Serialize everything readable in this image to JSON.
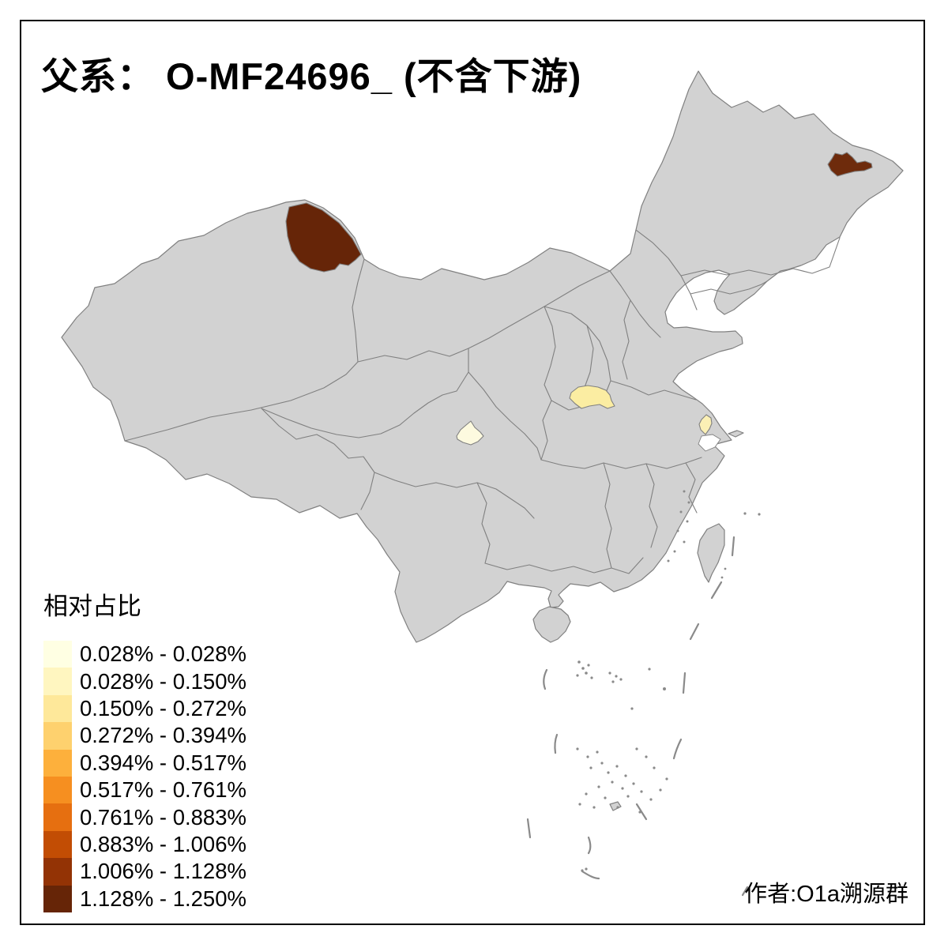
{
  "title": "父系： O-MF24696_ (不含下游)",
  "author_credit": "作者:O1a溯源群",
  "legend": {
    "title": "相对占比",
    "classes": [
      {
        "label": "0.028% - 0.028%",
        "color": "#FFFFE3"
      },
      {
        "label": "0.028% - 0.150%",
        "color": "#FFF6C0"
      },
      {
        "label": "0.150% - 0.272%",
        "color": "#FEE89A"
      },
      {
        "label": "0.272% - 0.394%",
        "color": "#FED16E"
      },
      {
        "label": "0.394% - 0.517%",
        "color": "#FDB03C"
      },
      {
        "label": "0.517% - 0.761%",
        "color": "#F68F20"
      },
      {
        "label": "0.761% - 0.883%",
        "color": "#E66F10"
      },
      {
        "label": "0.883% - 1.006%",
        "color": "#C24D04"
      },
      {
        "label": "1.006% - 1.128%",
        "color": "#933305"
      },
      {
        "label": "1.128% - 1.250%",
        "color": "#662507"
      }
    ]
  },
  "map": {
    "background_color": "#FFFFFF",
    "land_color": "#D2D2D2",
    "border_color": "#808080",
    "frame_color": "#000000",
    "speck_color": "#8A8A8A",
    "lake_color": "#FFFFFF",
    "regions": [
      {
        "id": "northwest-region",
        "color": "#662508",
        "legend_class": "1.128% - 1.250%"
      },
      {
        "id": "northeast-region",
        "color": "#6E2B0C",
        "legend_class": "1.128% - 1.250%"
      },
      {
        "id": "center-region",
        "color": "#FBEDA2",
        "legend_class": "0.150% - 0.272%"
      },
      {
        "id": "center-west-region",
        "color": "#FDFADF",
        "legend_class": "0.028% - 0.028%"
      },
      {
        "id": "east-region",
        "color": "#FBF0B5",
        "legend_class": "0.028% - 0.150%"
      }
    ]
  },
  "chart_data": {
    "type": "heatmap",
    "subtype": "choropleth map of China prefectures",
    "title": "父系： O-MF24696_ (不含下游)",
    "legend_title": "相对占比",
    "bins": [
      "0.028% - 0.028%",
      "0.028% - 0.150%",
      "0.150% - 0.272%",
      "0.272% - 0.394%",
      "0.394% - 0.517%",
      "0.517% - 0.761%",
      "0.761% - 0.883%",
      "0.883% - 1.006%",
      "1.006% - 1.128%",
      "1.128% - 1.250%"
    ],
    "bin_colors": [
      "#FFFFE3",
      "#FFF6C0",
      "#FEE89A",
      "#FED16E",
      "#FDB03C",
      "#F68F20",
      "#E66F10",
      "#C24D04",
      "#933305",
      "#662507"
    ],
    "value_range_percent": [
      0.028,
      1.25
    ],
    "highlighted_regions": [
      {
        "position": "northwest (northern Xinjiang)",
        "bin": "1.128% - 1.250%",
        "color": "#662508"
      },
      {
        "position": "northeast (eastern Heilongjiang)",
        "bin": "1.128% - 1.250%",
        "color": "#6E2B0C"
      },
      {
        "position": "center (southern Shaanxi)",
        "bin": "0.150% - 0.272%",
        "color": "#FBEDA2"
      },
      {
        "position": "center-west (central Sichuan)",
        "bin": "0.028% - 0.028%",
        "color": "#FDFADF"
      },
      {
        "position": "east (southern Jiangsu)",
        "bin": "0.028% - 0.150%",
        "color": "#FBF0B5"
      }
    ],
    "other_regions": "gray (no data)",
    "legend_position": "bottom-left",
    "annotation_bottom_right": "作者:O1a溯源群"
  }
}
